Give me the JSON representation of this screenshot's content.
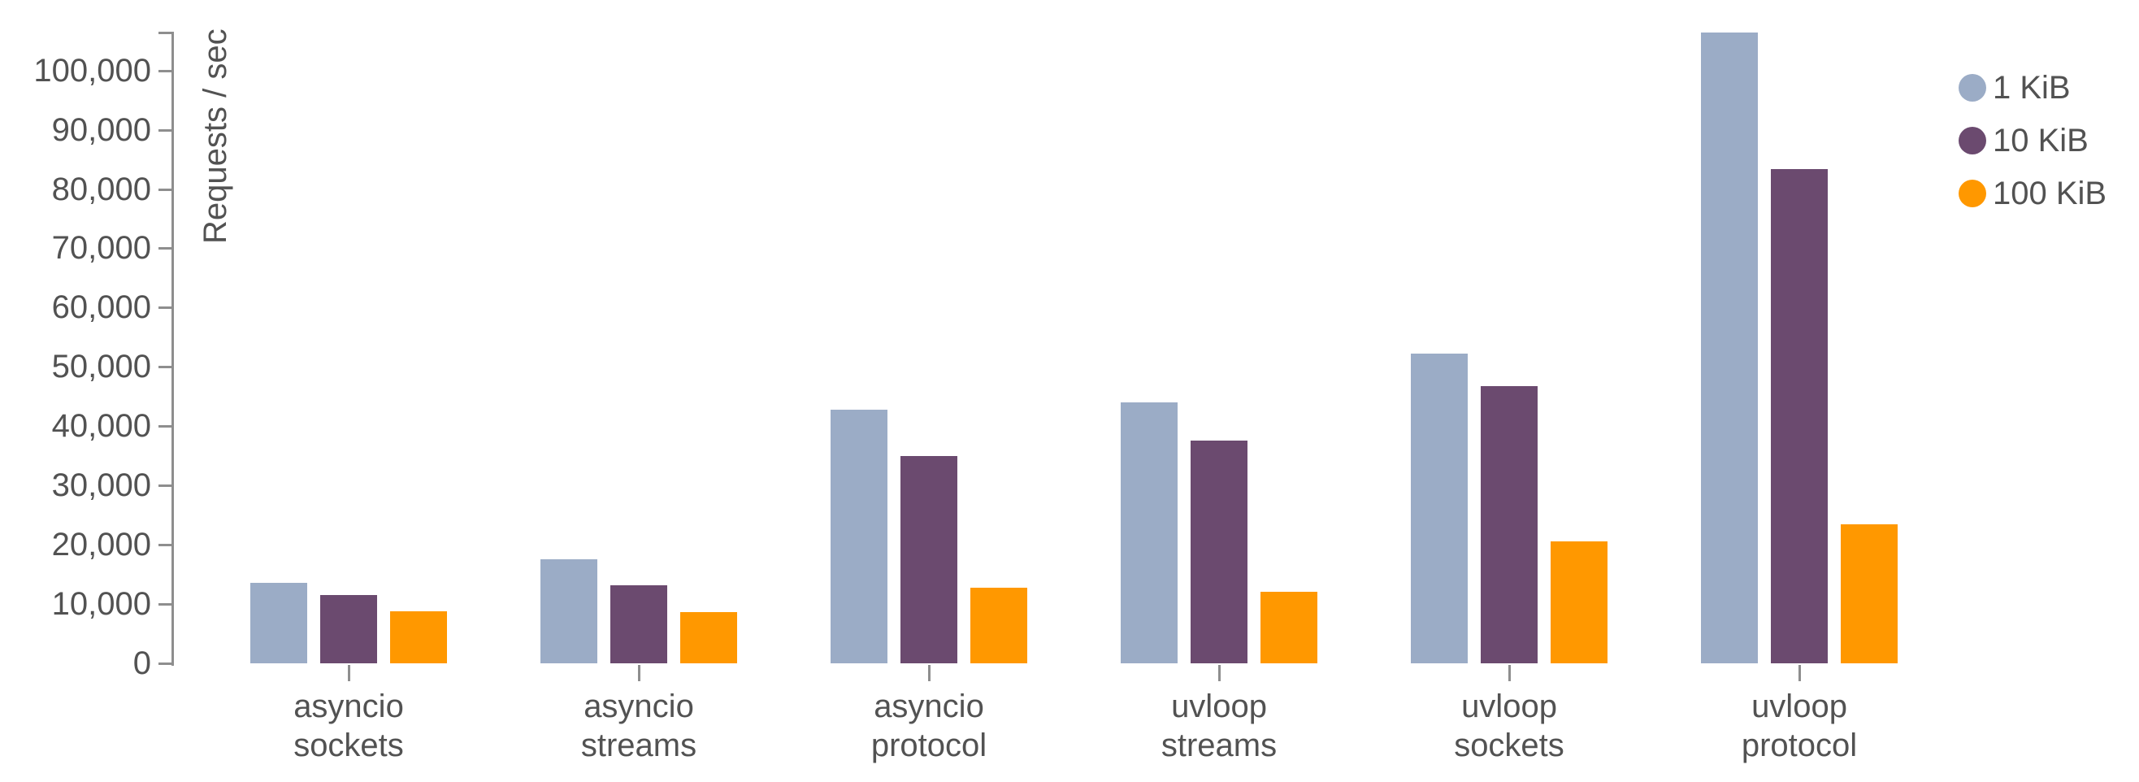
{
  "chart_data": {
    "type": "bar",
    "title": "",
    "ylabel": "Requests / sec",
    "ylim": [
      0,
      106400
    ],
    "yticks": [
      0,
      10000,
      20000,
      30000,
      40000,
      50000,
      60000,
      70000,
      80000,
      90000,
      100000
    ],
    "ytick_labels": [
      "0",
      "10,000",
      "20,000",
      "30,000",
      "40,000",
      "50,000",
      "60,000",
      "70,000",
      "80,000",
      "90,000",
      "100,000"
    ],
    "grid": false,
    "legend_position": "top-right",
    "legend_marker": "circle",
    "categories": [
      {
        "line1": "asyncio",
        "line2": "sockets"
      },
      {
        "line1": "asyncio",
        "line2": "streams"
      },
      {
        "line1": "asyncio",
        "line2": "protocol"
      },
      {
        "line1": "uvloop",
        "line2": "streams"
      },
      {
        "line1": "uvloop",
        "line2": "sockets"
      },
      {
        "line1": "uvloop",
        "line2": "protocol"
      }
    ],
    "series": [
      {
        "name": "1 KiB",
        "color": "#9BACC6",
        "values": [
          13600,
          17500,
          42800,
          44000,
          52300,
          106400
        ]
      },
      {
        "name": "10 KiB",
        "color": "#6B4A6F",
        "values": [
          11500,
          13200,
          34900,
          37600,
          46800,
          83300
        ]
      },
      {
        "name": "100 KiB",
        "color": "#FF9800",
        "values": [
          8800,
          8700,
          12700,
          12000,
          20600,
          23500
        ]
      }
    ],
    "colors": {
      "axis": "#8e8e8e",
      "text": "#525252",
      "background": "#ffffff"
    }
  }
}
